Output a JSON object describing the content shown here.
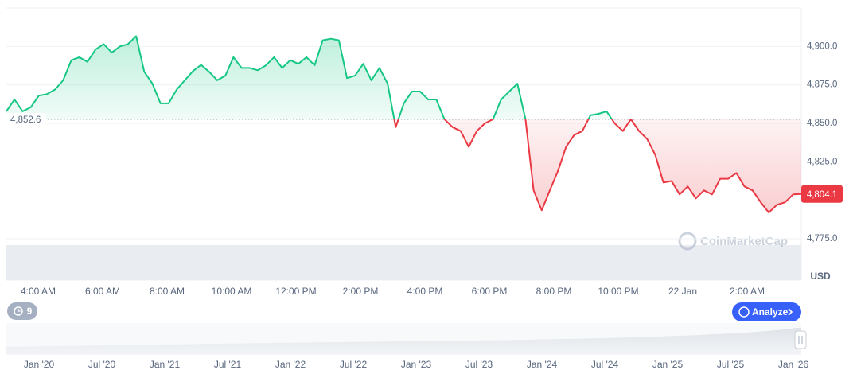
{
  "chart_data": {
    "type": "line",
    "xtick_labels": [
      "4:00 AM",
      "6:00 AM",
      "8:00 AM",
      "10:00 AM",
      "12:00 PM",
      "2:00 PM",
      "4:00 PM",
      "6:00 PM",
      "8:00 PM",
      "10:00 PM",
      "22 Jan",
      "2:00 AM"
    ],
    "values": [
      4857.8,
      4865.5,
      4857.8,
      4860.4,
      4868,
      4869,
      4872,
      4878,
      4891,
      4893,
      4890,
      4898,
      4901.5,
      4896,
      4900,
      4901.5,
      4906.7,
      4883.5,
      4875.8,
      4863,
      4863,
      4872,
      4878,
      4884,
      4888,
      4883.5,
      4878,
      4881,
      4893,
      4886,
      4886,
      4884.5,
      4887.7,
      4893,
      4886,
      4891,
      4888.7,
      4893,
      4887.7,
      4904,
      4905,
      4904,
      4879.4,
      4881,
      4888.7,
      4878,
      4886,
      4875.8,
      4847.5,
      4863,
      4870.7,
      4870.7,
      4865.5,
      4865.5,
      4852.7,
      4847.5,
      4845,
      4834.7,
      4845,
      4850,
      4852.7,
      4865.5,
      4870.7,
      4875.8,
      4852.7,
      4806.4,
      4793.5,
      4806.4,
      4819,
      4834.7,
      4842.4,
      4845,
      4855.2,
      4856.2,
      4857.8,
      4850,
      4845,
      4852.7,
      4845,
      4839.8,
      4829.5,
      4811.5,
      4812.5,
      4803.8,
      4809,
      4801.2,
      4806.4,
      4803.8,
      4814,
      4814,
      4817.7,
      4809,
      4806.4,
      4798.7,
      4792,
      4797.1,
      4798.7,
      4803.8,
      4804.1
    ],
    "color_up": "#16c784",
    "color_down": "#ea3943",
    "ylim": [
      4775,
      4925
    ],
    "yticks": [
      {
        "value": 4775,
        "label": "4,775.0"
      },
      {
        "value": 4825,
        "label": "4,825.0"
      },
      {
        "value": 4850,
        "label": "4,850.0"
      },
      {
        "value": 4875,
        "label": "4,875.0"
      },
      {
        "value": 4900,
        "label": "4,900.0"
      }
    ],
    "grid": true,
    "baseline": {
      "value": 4852.6,
      "label": "4,852.6"
    },
    "last_price": {
      "value": 4804.1,
      "label": "4,804.1"
    },
    "currency": "USD",
    "watermark": "CoinMarketCap",
    "badge": "9",
    "button": "Analyze",
    "navigator_labels": [
      "Jan '20",
      "Jul '20",
      "Jan '21",
      "Jul '21",
      "Jan '22",
      "Jul '22",
      "Jan '23",
      "Jul '23",
      "Jan '24",
      "Jul '24",
      "Jan '25",
      "Jul '25",
      "Jan '26"
    ]
  }
}
